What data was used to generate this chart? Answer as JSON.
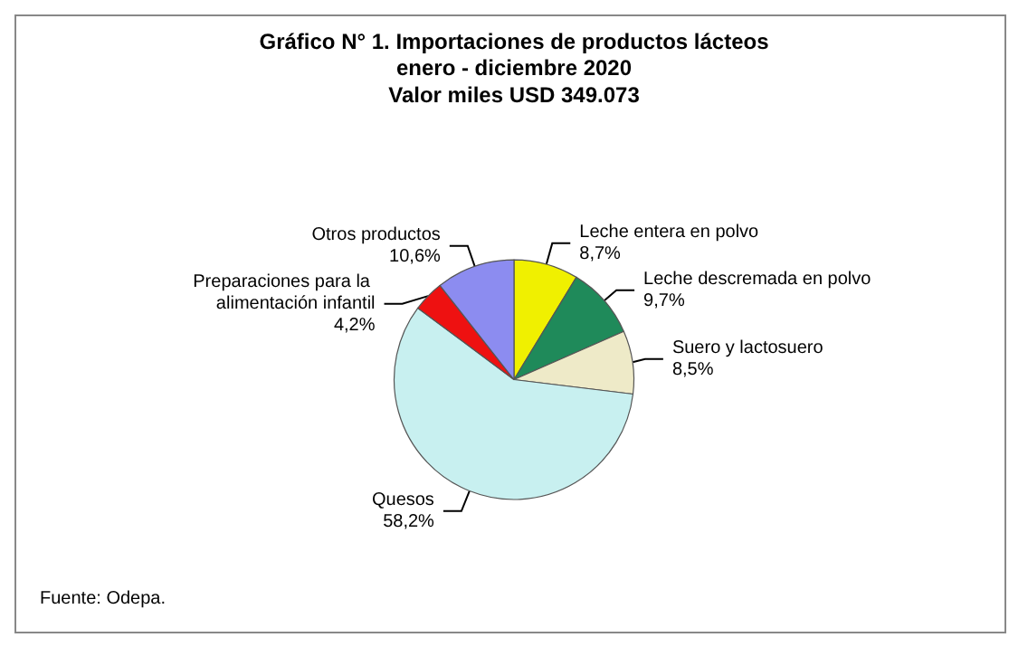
{
  "chart_data": {
    "type": "pie",
    "title": "Gráfico N° 1. Importaciones de productos lácteos",
    "subtitle": "enero - diciembre 2020\nValor miles USD 349.073",
    "categories": [
      "Leche entera en polvo",
      "Leche descremada en polvo",
      "Suero y lactosuero",
      "Quesos",
      "Preparaciones para la alimentación infantil",
      "Otros productos"
    ],
    "values": [
      8.7,
      9.7,
      8.5,
      58.2,
      4.2,
      10.6
    ],
    "value_labels": [
      "8,7%",
      "9,7%",
      "8,5%",
      "58,2%",
      "4,2%",
      "10,6%"
    ],
    "colors": [
      "#f0f000",
      "#1f8a5a",
      "#eeeac8",
      "#c8f0f0",
      "#ee1111",
      "#8c8cf0"
    ],
    "annotations": [
      "Fuente: Odepa."
    ],
    "legend": false
  }
}
